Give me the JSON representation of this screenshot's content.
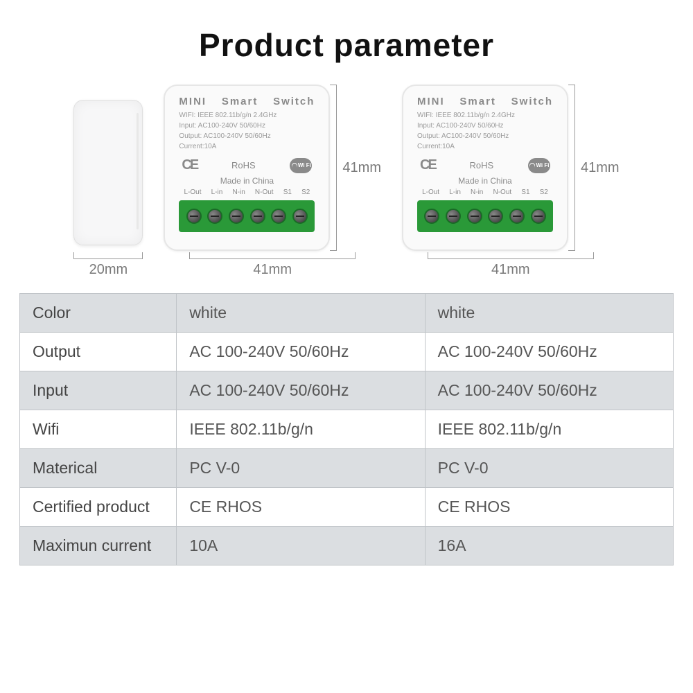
{
  "title": "Product  parameter",
  "dimensions": {
    "side_width": "20mm",
    "front_width": "41mm",
    "front_height": "41mm"
  },
  "device": {
    "title_parts": [
      "MINI",
      "Smart",
      "Switch"
    ],
    "specs": [
      "WIFI: IEEE 802.11b/g/n 2.4GHz",
      "Input: AC100-240V 50/60Hz",
      "Output:  AC100-240V 50/60Hz",
      "Current:10A"
    ],
    "ce": "CE",
    "rohs": "RoHS",
    "wifi_text": "Wi Fi",
    "made": "Made in China",
    "terminals": [
      "L-Out",
      "L-in",
      "N-in",
      "N-Out",
      "S1",
      "S2"
    ],
    "screw_count": 6
  },
  "terminal_colors": {
    "block": "#2a9938",
    "screw_border": "#1a6a26"
  },
  "table": {
    "rows": [
      [
        "Color",
        "white",
        "white"
      ],
      [
        "Output",
        "AC 100-240V  50/60Hz",
        "AC 100-240V  50/60Hz"
      ],
      [
        "Input",
        "AC 100-240V  50/60Hz",
        "AC 100-240V  50/60Hz"
      ],
      [
        "Wifi",
        "IEEE 802.11b/g/n",
        "IEEE 802.11b/g/n"
      ],
      [
        "Materical",
        "PC  V-0",
        "PC  V-0"
      ],
      [
        "Certified product",
        "CE RHOS",
        "CE RHOS"
      ],
      [
        "Maximun current",
        "10A",
        "16A"
      ]
    ]
  },
  "colors": {
    "title": "#111111",
    "device_text": "#8a8a8a",
    "table_alt_bg": "#dbdee1",
    "table_border": "#c0c4c8",
    "dim_label": "#7a7a7a"
  }
}
